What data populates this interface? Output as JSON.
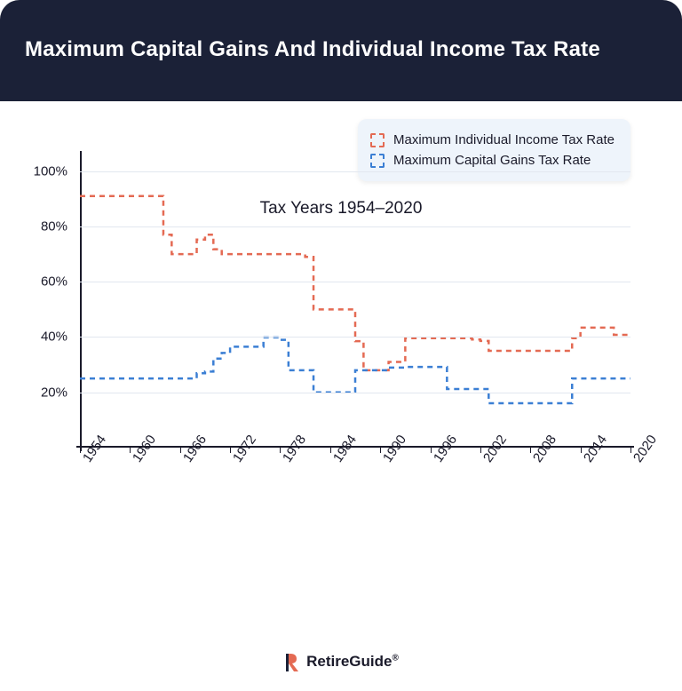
{
  "header": {
    "title": "Maximum Capital Gains And Individual Income Tax Rate",
    "bg_color": "#1b2137",
    "title_color": "#ffffff",
    "title_fontsize": 24
  },
  "chart": {
    "type": "line",
    "x_domain": [
      1954,
      2020
    ],
    "y_domain": [
      0,
      106
    ],
    "y_ticks": [
      20,
      40,
      60,
      80,
      100
    ],
    "y_tick_suffix": "%",
    "x_ticks": [
      1954,
      1960,
      1966,
      1972,
      1978,
      1984,
      1990,
      1996,
      2002,
      2008,
      2014,
      2020
    ],
    "gridline_color": "#e2e7ef",
    "axis_color": "#1a1a2a",
    "background_color": "#ffffff",
    "series": [
      {
        "name": "Maximum Individual Income Tax Rate",
        "color": "#e46a53",
        "dash": "6 5",
        "stroke_width": 2.5,
        "points": [
          [
            1954,
            91
          ],
          [
            1963,
            91
          ],
          [
            1964,
            77
          ],
          [
            1965,
            70
          ],
          [
            1967,
            70
          ],
          [
            1968,
            75.25
          ],
          [
            1969,
            77
          ],
          [
            1970,
            71.75
          ],
          [
            1971,
            70
          ],
          [
            1980,
            70
          ],
          [
            1981,
            69
          ],
          [
            1982,
            50
          ],
          [
            1986,
            50
          ],
          [
            1987,
            38.5
          ],
          [
            1988,
            28
          ],
          [
            1990,
            28
          ],
          [
            1991,
            31
          ],
          [
            1992,
            31
          ],
          [
            1993,
            39.6
          ],
          [
            2000,
            39.6
          ],
          [
            2001,
            39.1
          ],
          [
            2002,
            38.6
          ],
          [
            2003,
            35
          ],
          [
            2012,
            35
          ],
          [
            2013,
            39.6
          ],
          [
            2014,
            43.4
          ],
          [
            2017,
            43.4
          ],
          [
            2018,
            40.8
          ],
          [
            2020,
            40.8
          ]
        ]
      },
      {
        "name": "Maximum Capital Gains Tax Rate",
        "color": "#3b7fd4",
        "dash": "6 5",
        "stroke_width": 2.5,
        "points": [
          [
            1954,
            25
          ],
          [
            1967,
            25
          ],
          [
            1968,
            26.9
          ],
          [
            1969,
            27.5
          ],
          [
            1970,
            32.2
          ],
          [
            1971,
            34.25
          ],
          [
            1972,
            36.5
          ],
          [
            1975,
            36.5
          ],
          [
            1976,
            39.875
          ],
          [
            1978,
            39
          ],
          [
            1979,
            28
          ],
          [
            1981,
            28
          ],
          [
            1982,
            20
          ],
          [
            1986,
            20
          ],
          [
            1987,
            28
          ],
          [
            1990,
            28
          ],
          [
            1991,
            28.93
          ],
          [
            1992,
            28.93
          ],
          [
            1993,
            29.19
          ],
          [
            1997,
            29.19
          ],
          [
            1998,
            21.19
          ],
          [
            2002,
            21.19
          ],
          [
            2003,
            16.05
          ],
          [
            2012,
            16.05
          ],
          [
            2013,
            25
          ],
          [
            2020,
            25
          ]
        ]
      }
    ],
    "x_caption": "Tax Years 1954–2020",
    "legend": {
      "bg_color": "#eef4fb",
      "items": [
        {
          "label": "Maximum Individual Income Tax Rate",
          "color": "#e46a53"
        },
        {
          "label": "Maximum Capital Gains Tax Rate",
          "color": "#3b7fd4"
        }
      ]
    }
  },
  "footer": {
    "brand": "RetireGuide",
    "registered": "®",
    "logo_color_a": "#e46a53",
    "logo_color_b": "#1b2137"
  }
}
